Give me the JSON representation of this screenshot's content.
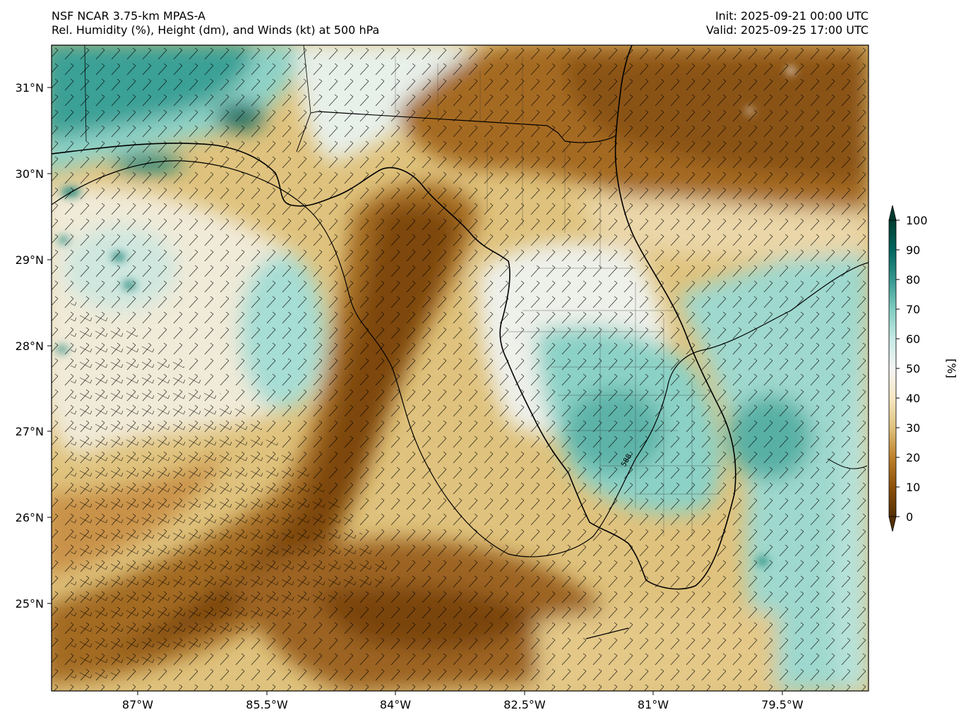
{
  "header": {
    "model": "NSF NCAR 3.75-km MPAS-A",
    "field": "Rel. Humidity (%), Height (dm), and Winds (kt) at 500 hPa",
    "init": "Init: 2025-09-21 00:00 UTC",
    "valid": "Valid: 2025-09-25 17:00 UTC"
  },
  "map": {
    "lon_ticks": [
      "87°W",
      "85.5°W",
      "84°W",
      "82.5°W",
      "81°W",
      "79.5°W"
    ],
    "lat_ticks": [
      "31°N",
      "30°N",
      "29°N",
      "28°N",
      "27°N",
      "26°N",
      "25°N"
    ],
    "lon_range": [
      -88.0,
      -78.5
    ],
    "lat_range": [
      24.0,
      31.5
    ],
    "contour_label": "588"
  },
  "colorbar": {
    "ticks": [
      "0",
      "10",
      "20",
      "30",
      "40",
      "50",
      "60",
      "70",
      "80",
      "90",
      "100"
    ],
    "unit_label": "[%]",
    "colors": {
      "c0": "#543005",
      "c10": "#8c510a",
      "c20": "#bf812d",
      "c30": "#dfc27d",
      "c40": "#f6e8c3",
      "c50": "#f5f5f5",
      "c60": "#c7eae5",
      "c70": "#80cdc1",
      "c80": "#35978f",
      "c90": "#01665e",
      "c100": "#003c30"
    }
  }
}
